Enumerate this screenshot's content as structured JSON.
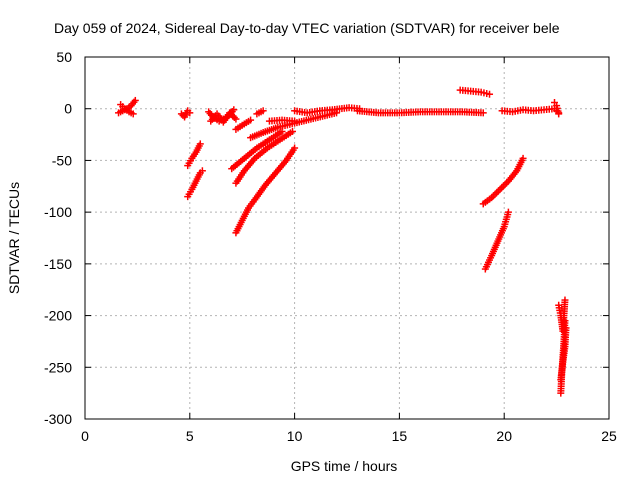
{
  "chart_data": {
    "type": "scatter",
    "title": "Day 059 of 2024, Sidereal Day-to-day VTEC variation (SDTVAR) for receiver bele",
    "xlabel": "GPS time / hours",
    "ylabel": "SDTVAR / TECUs",
    "xlim": [
      0,
      25
    ],
    "ylim": [
      -300,
      50
    ],
    "xticks": [
      0,
      5,
      10,
      15,
      20,
      25
    ],
    "yticks": [
      -300,
      -250,
      -200,
      -150,
      -100,
      -50,
      0,
      50
    ],
    "grid": true,
    "marker": "+",
    "colors": {
      "series": "#ff0000",
      "grid": "#b4b4b4",
      "axis": "#000000"
    },
    "series": [
      {
        "segments": [
          [
            [
              1.6,
              -4
            ],
            [
              1.8,
              -2
            ],
            [
              2.0,
              0
            ],
            [
              2.2,
              3
            ],
            [
              2.4,
              8
            ]
          ],
          [
            [
              1.7,
              4
            ],
            [
              1.9,
              0
            ],
            [
              2.1,
              -3
            ],
            [
              2.3,
              -5
            ]
          ],
          [
            [
              4.6,
              -5
            ],
            [
              4.75,
              -8
            ],
            [
              4.9,
              -2
            ],
            [
              5.0,
              -4
            ]
          ],
          [
            [
              4.9,
              -55
            ],
            [
              5.1,
              -48
            ],
            [
              5.3,
              -42
            ],
            [
              5.5,
              -34
            ]
          ],
          [
            [
              4.9,
              -85
            ],
            [
              5.1,
              -78
            ],
            [
              5.3,
              -70
            ],
            [
              5.5,
              -62
            ],
            [
              5.6,
              -60
            ]
          ],
          [
            [
              5.9,
              -3
            ],
            [
              6.1,
              -8
            ],
            [
              6.4,
              -12
            ],
            [
              6.8,
              -8
            ],
            [
              7.1,
              -1
            ]
          ],
          [
            [
              6.0,
              -12
            ],
            [
              6.3,
              -5
            ],
            [
              6.6,
              -13
            ],
            [
              6.9,
              -4
            ],
            [
              7.2,
              -10
            ]
          ],
          [
            [
              7.2,
              -20
            ],
            [
              7.5,
              -16
            ],
            [
              7.9,
              -11
            ]
          ],
          [
            [
              7.2,
              -72
            ],
            [
              7.6,
              -60
            ],
            [
              8.1,
              -48
            ],
            [
              8.7,
              -38
            ],
            [
              9.3,
              -30
            ],
            [
              9.9,
              -22
            ]
          ],
          [
            [
              7.0,
              -58
            ],
            [
              7.6,
              -48
            ],
            [
              8.2,
              -38
            ],
            [
              8.8,
              -30
            ],
            [
              9.4,
              -22
            ]
          ],
          [
            [
              7.2,
              -120
            ],
            [
              7.5,
              -108
            ],
            [
              7.8,
              -96
            ],
            [
              8.1,
              -88
            ],
            [
              8.6,
              -74
            ],
            [
              9.1,
              -62
            ],
            [
              9.6,
              -50
            ],
            [
              10.0,
              -38
            ]
          ],
          [
            [
              8.2,
              -5
            ],
            [
              8.5,
              -2
            ]
          ],
          [
            [
              7.9,
              -28
            ],
            [
              8.5,
              -23
            ],
            [
              9.2,
              -18
            ],
            [
              10.0,
              -14
            ],
            [
              11.0,
              -9
            ],
            [
              12.0,
              -4
            ]
          ],
          [
            [
              8.8,
              -12
            ],
            [
              9.4,
              -11
            ],
            [
              10.0,
              -12
            ]
          ],
          [
            [
              10.0,
              -2
            ],
            [
              10.6,
              -4
            ],
            [
              11.2,
              -2
            ],
            [
              11.8,
              -1
            ],
            [
              12.6,
              1
            ],
            [
              13.1,
              0
            ]
          ],
          [
            [
              13.0,
              -2
            ],
            [
              14.0,
              -4
            ],
            [
              15.0,
              -4
            ],
            [
              16.0,
              -3
            ],
            [
              17.0,
              -3
            ],
            [
              18.0,
              -3
            ],
            [
              19.0,
              -4
            ]
          ],
          [
            [
              17.9,
              18
            ],
            [
              18.4,
              17
            ],
            [
              18.9,
              16
            ],
            [
              19.3,
              14
            ]
          ],
          [
            [
              19.0,
              -92
            ],
            [
              19.4,
              -86
            ],
            [
              19.8,
              -78
            ],
            [
              20.2,
              -70
            ],
            [
              20.6,
              -60
            ],
            [
              20.9,
              -48
            ]
          ],
          [
            [
              19.1,
              -155
            ],
            [
              19.4,
              -142
            ],
            [
              19.7,
              -128
            ],
            [
              20.0,
              -114
            ],
            [
              20.2,
              -100
            ]
          ],
          [
            [
              19.9,
              -2
            ],
            [
              20.4,
              -3
            ],
            [
              20.9,
              -1
            ],
            [
              21.4,
              -2
            ],
            [
              21.9,
              -1
            ],
            [
              22.4,
              0
            ],
            [
              22.6,
              -4
            ]
          ],
          [
            [
              22.4,
              6
            ],
            [
              22.5,
              3
            ],
            [
              22.6,
              -5
            ]
          ],
          [
            [
              22.6,
              -190
            ],
            [
              22.7,
              -200
            ],
            [
              22.8,
              -215
            ],
            [
              22.9,
              -185
            ]
          ],
          [
            [
              22.7,
              -275
            ],
            [
              22.75,
              -255
            ],
            [
              22.8,
              -240
            ],
            [
              22.85,
              -225
            ],
            [
              22.9,
              -205
            ]
          ],
          [
            [
              22.7,
              -262
            ],
            [
              22.8,
              -245
            ],
            [
              22.9,
              -230
            ],
            [
              22.95,
              -212
            ]
          ]
        ]
      }
    ]
  }
}
